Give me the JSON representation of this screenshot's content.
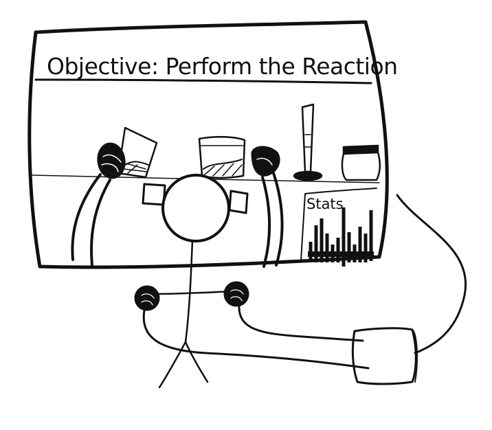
{
  "display": {
    "objective_text": "Objective: Perform the Reaction",
    "stats_label": "Stats"
  },
  "colors": {
    "ink": "#111111",
    "paper": "#ffffff"
  }
}
